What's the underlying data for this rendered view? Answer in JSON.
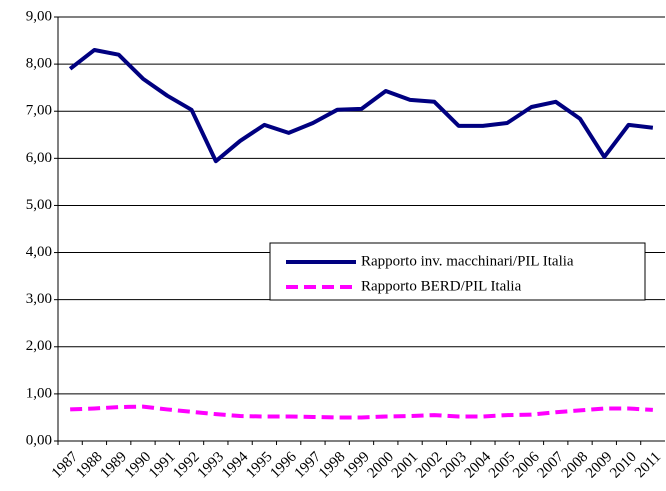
{
  "chart_data": {
    "type": "line",
    "categories": [
      "1987",
      "1988",
      "1989",
      "1990",
      "1991",
      "1992",
      "1993",
      "1994",
      "1995",
      "1996",
      "1997",
      "1998",
      "1999",
      "2000",
      "2001",
      "2002",
      "2003",
      "2004",
      "2005",
      "2006",
      "2007",
      "2008",
      "2009",
      "2010",
      "2011"
    ],
    "series": [
      {
        "name": "Rapporto inv. macchinari/PIL Italia",
        "color": "#000080",
        "dashed": false,
        "values": [
          7.9,
          8.3,
          8.2,
          7.69,
          7.33,
          7.03,
          5.94,
          6.37,
          6.71,
          6.54,
          6.75,
          7.03,
          7.05,
          7.43,
          7.24,
          7.2,
          6.69,
          6.69,
          6.75,
          7.09,
          7.2,
          6.84,
          6.03,
          6.71,
          6.65
        ]
      },
      {
        "name": "Rapporto BERD/PIL  Italia",
        "color": "#ff00ff",
        "dashed": true,
        "values": [
          0.67,
          0.69,
          0.72,
          0.73,
          0.67,
          0.62,
          0.57,
          0.53,
          0.52,
          0.52,
          0.51,
          0.5,
          0.5,
          0.52,
          0.53,
          0.55,
          0.52,
          0.52,
          0.55,
          0.56,
          0.61,
          0.65,
          0.69,
          0.69,
          0.66
        ]
      }
    ],
    "ylim": [
      0,
      9
    ],
    "yticks": [
      {
        "value": 0,
        "label": "0,00"
      },
      {
        "value": 1,
        "label": "1,00"
      },
      {
        "value": 2,
        "label": "2,00"
      },
      {
        "value": 3,
        "label": "3,00"
      },
      {
        "value": 4,
        "label": "4,00"
      },
      {
        "value": 5,
        "label": "5,00"
      },
      {
        "value": 6,
        "label": "6,00"
      },
      {
        "value": 7,
        "label": "7,00"
      },
      {
        "value": 8,
        "label": "8,00"
      },
      {
        "value": 9,
        "label": "9,00"
      }
    ],
    "grid": true
  }
}
